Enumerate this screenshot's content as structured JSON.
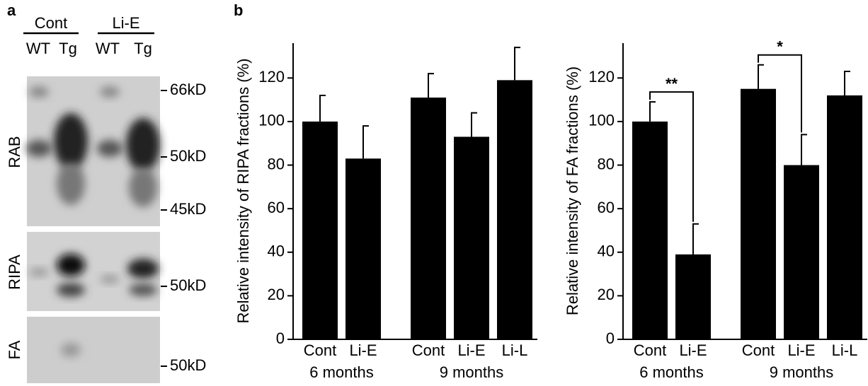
{
  "western_blot": {
    "panel_label": "a",
    "treatments": [
      "Cont",
      "Li-E"
    ],
    "genotypes": [
      "WT",
      "Tg",
      "WT",
      "Tg"
    ],
    "fractions": [
      "RAB",
      "RIPA",
      "FA"
    ],
    "markers": [
      "66kD",
      "50kD",
      "45kD",
      "50kD",
      "50kD"
    ]
  },
  "panel_b_label": "b",
  "chart_data": [
    {
      "type": "bar",
      "ylabel": "Relative intensity of RIPA fractions (%)",
      "groups": [
        {
          "label": "6 months",
          "categories": [
            "Cont",
            "Li-E"
          ]
        },
        {
          "label": "9 months",
          "categories": [
            "Cont",
            "Li-E",
            "Li-L"
          ]
        }
      ],
      "values": [
        100,
        83,
        111,
        93,
        119
      ],
      "errors": [
        12,
        15,
        11,
        11,
        15
      ],
      "color": "#000000",
      "ylim": [
        0,
        136
      ],
      "yticks": [
        0,
        20,
        40,
        60,
        80,
        100,
        120
      ],
      "grid": false
    },
    {
      "type": "bar",
      "ylabel": "Relative intensity of FA fractions (%)",
      "groups": [
        {
          "label": "6 months",
          "categories": [
            "Cont",
            "Li-E"
          ],
          "significance": "**"
        },
        {
          "label": "9 months",
          "categories": [
            "Cont",
            "Li-E",
            "Li-L"
          ],
          "significance": "*"
        }
      ],
      "values": [
        100,
        39,
        115,
        80,
        112
      ],
      "errors": [
        9,
        14,
        11,
        14,
        11
      ],
      "color": "#000000",
      "ylim": [
        0,
        136
      ],
      "yticks": [
        0,
        20,
        40,
        60,
        80,
        100,
        120
      ],
      "grid": false
    }
  ]
}
